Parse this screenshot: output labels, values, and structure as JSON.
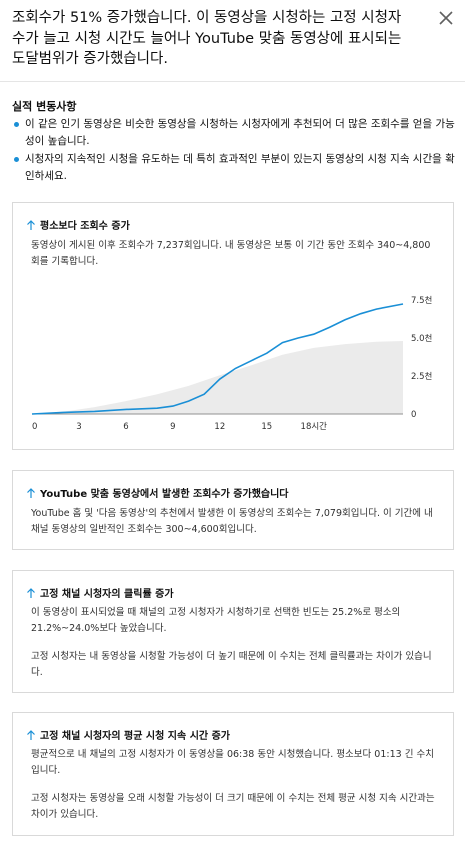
{
  "header": {
    "headline": "조회수가 51% 증가했습니다. 이 동영상을 시청하는 고정 시청자 수가 늘고 시청 시간도 늘어나 YouTube 맞춤 동영상에 표시되는 도달범위가 증가했습니다."
  },
  "performance": {
    "title": "실적 변동사항",
    "bullets": [
      "이 같은 인기 동영상은 비슷한 동영상을 시청하는 시청자에게 추천되어 더 많은 조회수를 얻을 가능성이 높습니다.",
      "시청자의 지속적인 시청을 유도하는 데 특히 효과적인 부분이 있는지 동영상의 시청 지속 시간을 확인하세요."
    ]
  },
  "cards": [
    {
      "title": "평소보다 조회수 증가",
      "body": [
        "동영상이 게시된 이후 조회수가 7,237회입니다. 내 동영상은 보통 이 기간 동안 조회수 340~4,800회를 기록합니다."
      ]
    },
    {
      "title": "YouTube 맞춤 동영상에서 발생한 조회수가 증가했습니다",
      "body": [
        "YouTube 홈 및 '다음 동영상'의 추천에서 발생한 이 동영상의 조회수는 7,079회입니다. 이 기간에 내 채널 동영상의 일반적인 조회수는 300~4,600회입니다."
      ]
    },
    {
      "title": "고정 채널 시청자의 클릭률 증가",
      "body": [
        "이 동영상이 표시되었을 때 채널의 고정 시청자가 시청하기로 선택한 빈도는 25.2%로 평소의 21.2%~24.0%보다 높았습니다.",
        "고정 시청자는 내 동영상을 시청할 가능성이 더 높기 때문에 이 수치는 전체 클릭률과는 차이가 있습니다."
      ]
    },
    {
      "title": "고정 채널 시청자의 평균 시청 지속 시간 증가",
      "body": [
        "평균적으로 내 채널의 고정 시청자가 이 동영상을 06:38 동안 시청했습니다. 평소보다 01:13 긴 수치입니다.",
        "고정 시청자는 동영상을 오래 시청할 가능성이 더 크기 때문에 이 수치는 전체 평균 시청 지속 시간과는 차이가 있습니다."
      ]
    }
  ],
  "icons": {
    "close": "close-icon",
    "arrow": "arrow-up-icon"
  },
  "colors": {
    "accent": "#1a8fd6",
    "band": "#ebebeb",
    "axis": "#909090"
  },
  "chart_data": {
    "type": "area",
    "x_tick_labels": [
      "0",
      "3",
      "6",
      "9",
      "12",
      "15",
      "18시간"
    ],
    "y_tick_labels": [
      "0",
      "2.5천",
      "5.0천",
      "7.5천"
    ],
    "x_range": [
      0,
      23.7
    ],
    "y_range": [
      0,
      7500
    ],
    "series": [
      {
        "x": [
          0,
          2,
          4,
          6,
          8,
          9,
          10,
          11,
          12,
          13,
          14,
          15,
          16,
          17,
          18,
          19,
          20,
          21,
          22,
          23.7
        ],
        "values": [
          0,
          100,
          170,
          300,
          380,
          520,
          850,
          1300,
          2300,
          3000,
          3500,
          4000,
          4700,
          5000,
          5250,
          5700,
          6200,
          6600,
          6900,
          7237
        ]
      }
    ],
    "band": {
      "x": [
        0,
        2,
        4,
        6,
        8,
        10,
        12,
        14,
        16,
        18,
        20,
        22,
        23.7
      ],
      "lower": [
        0,
        0,
        0,
        0,
        0,
        0,
        0,
        0,
        0,
        0,
        0,
        0,
        0
      ],
      "upper": [
        0,
        150,
        450,
        850,
        1300,
        1850,
        2550,
        3200,
        3900,
        4350,
        4600,
        4750,
        4800
      ]
    }
  }
}
